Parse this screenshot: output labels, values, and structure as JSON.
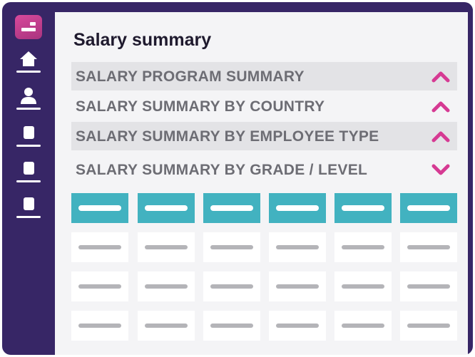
{
  "page": {
    "title": "Salary summary"
  },
  "sections": [
    {
      "label": "SALARY PROGRAM SUMMARY",
      "state": "expanded",
      "icon": "chevron-up-icon"
    },
    {
      "label": "SALARY SUMMARY BY COUNTRY",
      "state": "expanded",
      "icon": "chevron-up-icon"
    },
    {
      "label": "SALARY SUMMARY BY EMPLOYEE TYPE",
      "state": "expanded",
      "icon": "chevron-up-icon"
    },
    {
      "label": "SALARY SUMMARY BY GRADE / LEVEL",
      "state": "collapsed",
      "icon": "chevron-down-icon"
    }
  ],
  "sidebar": {
    "logo": "app-logo",
    "items": [
      {
        "icon": "home-icon"
      },
      {
        "icon": "user-icon"
      },
      {
        "icon": "document-icon"
      },
      {
        "icon": "document-icon"
      },
      {
        "icon": "document-icon"
      }
    ]
  },
  "table": {
    "columns": 6,
    "body_rows": 3
  },
  "colors": {
    "sidebar": "#372666",
    "accent": "#d63a93",
    "header_cells": "#42b2c0",
    "row_shade": "#e3e3e6",
    "label_text": "#6d6d74"
  }
}
